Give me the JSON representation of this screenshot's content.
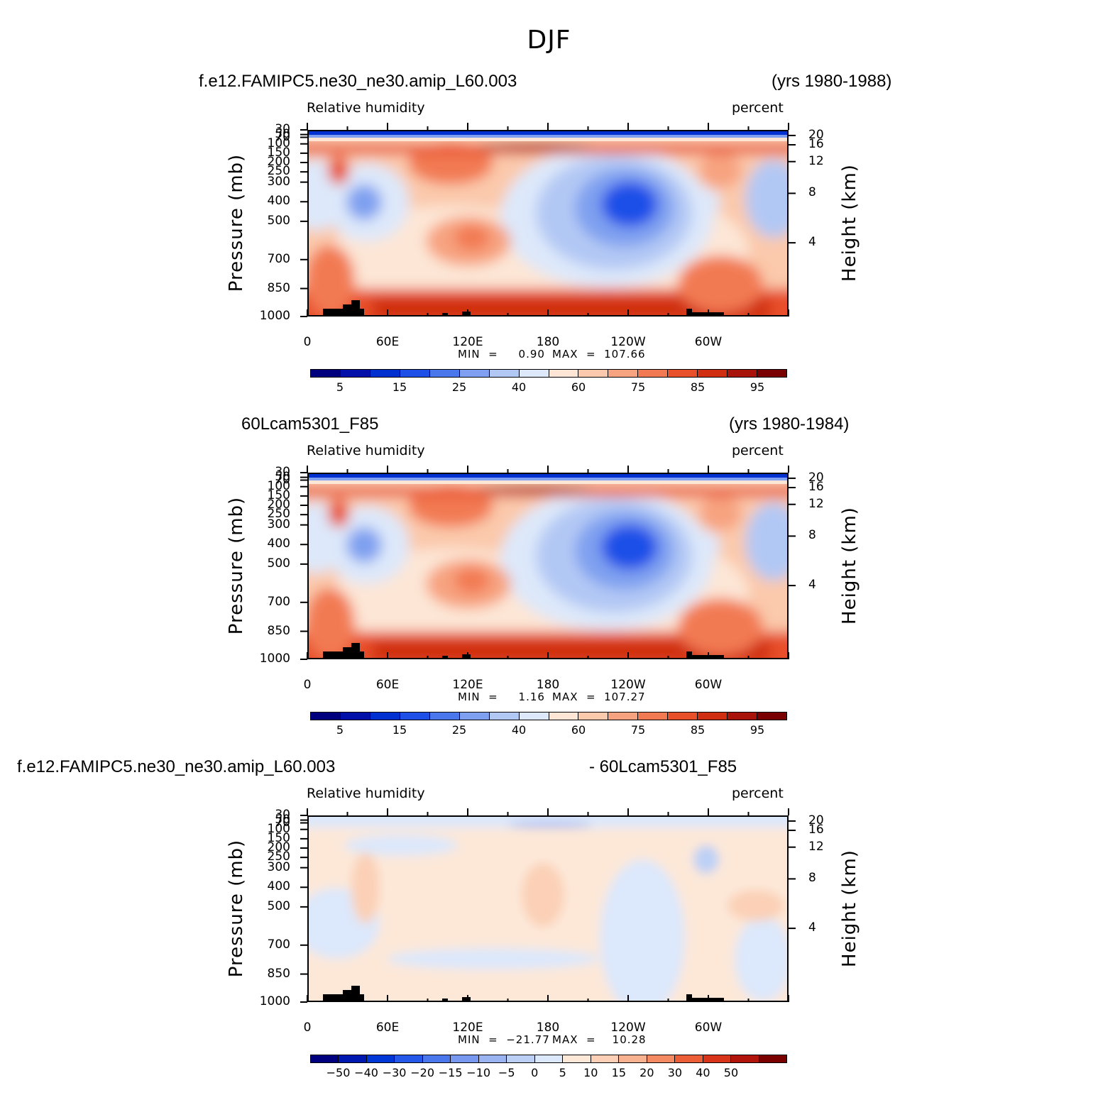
{
  "figure": {
    "title": "DJF"
  },
  "chart_data": [
    {
      "type": "heatmap",
      "title_left": "f.e12.FAMIPC5.ne30_ne30.amip_L60.003",
      "title_right": "(yrs 1980-1988)",
      "field_label": "Relative  humidity",
      "units_label": "percent",
      "ylabel": "Pressure  (mb)",
      "ylabel_right": "Height  (km)",
      "x_ticks": [
        "0",
        "60E",
        "120E",
        "180",
        "120W",
        "60W"
      ],
      "y_ticks": [
        "30",
        "50",
        "70",
        "100",
        "150",
        "200",
        "250",
        "300",
        "400",
        "500",
        "700",
        "850",
        "1000"
      ],
      "y_ticks_right": [
        "20",
        "16",
        "12",
        "8",
        "4"
      ],
      "min_label": "MIN  =     0.90",
      "max_label": "MAX  =  107.66",
      "colorbar_labels": [
        "5",
        "15",
        "25",
        "40",
        "60",
        "75",
        "85",
        "95"
      ]
    },
    {
      "type": "heatmap",
      "title_left": "60Lcam5301_F85",
      "title_right": "(yrs 1980-1984)",
      "field_label": "Relative  humidity",
      "units_label": "percent",
      "ylabel": "Pressure  (mb)",
      "ylabel_right": "Height  (km)",
      "x_ticks": [
        "0",
        "60E",
        "120E",
        "180",
        "120W",
        "60W"
      ],
      "y_ticks": [
        "30",
        "50",
        "70",
        "100",
        "150",
        "200",
        "250",
        "300",
        "400",
        "500",
        "700",
        "850",
        "1000"
      ],
      "y_ticks_right": [
        "20",
        "16",
        "12",
        "8",
        "4"
      ],
      "min_label": "MIN  =     1.16",
      "max_label": "MAX  =  107.27",
      "colorbar_labels": [
        "5",
        "15",
        "25",
        "40",
        "60",
        "75",
        "85",
        "95"
      ]
    },
    {
      "type": "heatmap",
      "title_left": "f.e12.FAMIPC5.ne30_ne30.amip_L60.003",
      "title_right": "- 60Lcam5301_F85",
      "field_label": "Relative  humidity",
      "units_label": "percent",
      "ylabel": "Pressure  (mb)",
      "ylabel_right": "Height  (km)",
      "x_ticks": [
        "0",
        "60E",
        "120E",
        "180",
        "120W",
        "60W"
      ],
      "y_ticks": [
        "30",
        "50",
        "70",
        "100",
        "150",
        "200",
        "250",
        "300",
        "400",
        "500",
        "700",
        "850",
        "1000"
      ],
      "y_ticks_right": [
        "20",
        "16",
        "12",
        "8",
        "4"
      ],
      "min_label": "MIN  =  −21.77",
      "max_label": "MAX  =    10.28",
      "colorbar_labels": [
        "−50",
        "−40",
        "−30",
        "−20",
        "−15",
        "−10",
        "−5",
        "0",
        "5",
        "10",
        "15",
        "20",
        "30",
        "40",
        "50"
      ]
    }
  ],
  "colors": {
    "seq": [
      "#00007f",
      "#0010a8",
      "#0030d0",
      "#1e50e8",
      "#4a78ec",
      "#7fa0f0",
      "#b2c8f4",
      "#dde8fa",
      "#fde6d6",
      "#fbc9ac",
      "#f7a380",
      "#f27a52",
      "#e8502a",
      "#cf2e10",
      "#a8140a",
      "#7a0000"
    ],
    "div": [
      "#00007f",
      "#0018b0",
      "#0038d8",
      "#2458e8",
      "#4a78ec",
      "#7898f0",
      "#9ab4f2",
      "#bcd0f6",
      "#dce8fb",
      "#fde8d8",
      "#fbd0b6",
      "#f8b290",
      "#f48a62",
      "#ec5f36",
      "#d8341a",
      "#b0140a",
      "#7a0000"
    ]
  }
}
